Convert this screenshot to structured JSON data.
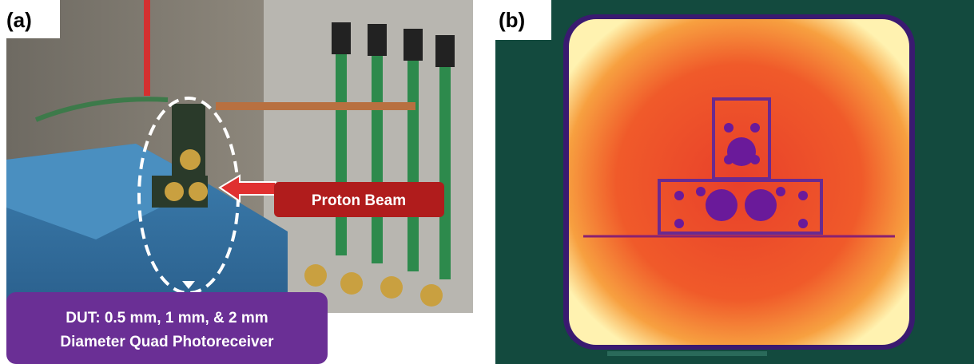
{
  "panels": [
    {
      "label": "(a)",
      "beam_label": "Proton Beam",
      "dut_label": [
        "DUT: 0.5 mm, 1 mm, & 2 mm",
        "Diameter Quad Photoreceiver"
      ]
    },
    {
      "label": "(b)"
    }
  ]
}
